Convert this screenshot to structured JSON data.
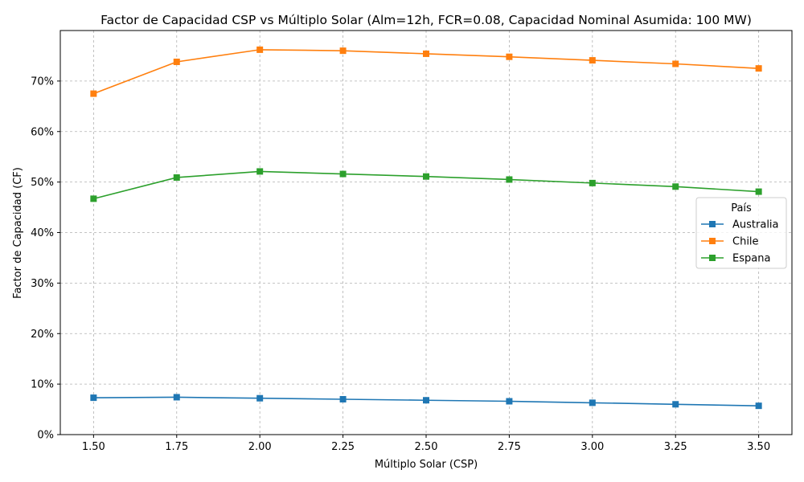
{
  "chart_data": {
    "type": "line",
    "title": "Factor de Capacidad CSP vs Múltiplo Solar (Alm=12h, FCR=0.08, Capacidad Nominal Asumida: 100 MW)",
    "xlabel": "Múltiplo Solar (CSP)",
    "ylabel": "Factor de Capacidad (CF)",
    "x": [
      1.5,
      1.75,
      2.0,
      2.25,
      2.5,
      2.75,
      3.0,
      3.25,
      3.5
    ],
    "x_ticks": [
      "1.50",
      "1.75",
      "2.00",
      "2.25",
      "2.50",
      "2.75",
      "3.00",
      "3.25",
      "3.50"
    ],
    "y_ticks": [
      "0%",
      "10%",
      "20%",
      "30%",
      "40%",
      "50%",
      "60%",
      "70%"
    ],
    "xlim": [
      1.4,
      3.6
    ],
    "ylim": [
      0,
      0.8
    ],
    "grid": true,
    "marker": "square",
    "legend": {
      "title": "País",
      "placement": "center-right"
    },
    "series": [
      {
        "name": "Australia",
        "color": "#1f77b4",
        "values": [
          0.073,
          0.074,
          0.072,
          0.07,
          0.068,
          0.066,
          0.063,
          0.06,
          0.057
        ]
      },
      {
        "name": "Chile",
        "color": "#ff7f0e",
        "values": [
          0.675,
          0.738,
          0.762,
          0.76,
          0.754,
          0.748,
          0.741,
          0.734,
          0.725
        ]
      },
      {
        "name": "Espana",
        "color": "#2ca02c",
        "values": [
          0.467,
          0.509,
          0.521,
          0.516,
          0.511,
          0.505,
          0.498,
          0.491,
          0.481
        ]
      }
    ]
  }
}
